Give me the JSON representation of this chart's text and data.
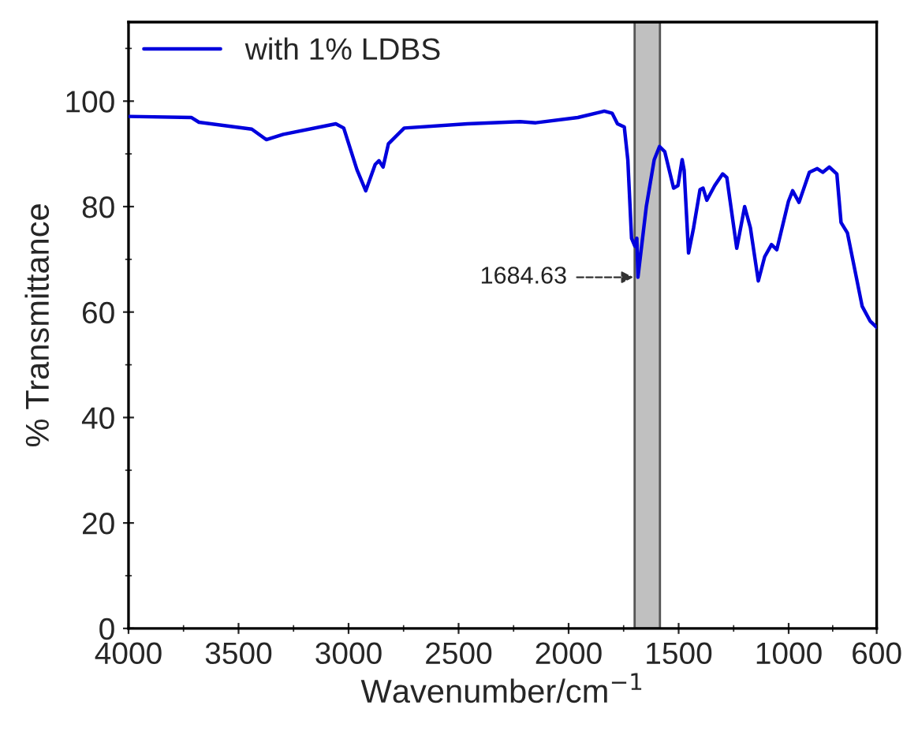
{
  "chart_data": {
    "type": "line",
    "xlabel": "Wavenumber/cm$^{−1}$",
    "ylabel": "% Transmittance",
    "xlim": [
      4000,
      600
    ],
    "ylim": [
      0,
      115
    ],
    "xticks": [
      4000,
      3500,
      3000,
      2500,
      2000,
      1500,
      1000,
      600
    ],
    "yticks": [
      0,
      20,
      40,
      60,
      80,
      100
    ],
    "grid": false,
    "legend": "top left",
    "marker": "none",
    "line_style": "solid",
    "bands": [
      {
        "axis": "x",
        "from": 1700,
        "to": 1585,
        "color": "#c0c0c0"
      }
    ],
    "annotations": [
      {
        "text": "1684.63",
        "x": 1685,
        "y": 66.6
      }
    ],
    "series": [
      {
        "name": "with 1% LDBS",
        "color": "#0000dd",
        "x": [
          4000,
          3715,
          3680,
          3440,
          3374,
          3297,
          3058,
          3022,
          2962,
          2922,
          2879,
          2862,
          2843,
          2819,
          2747,
          2460,
          2221,
          2149,
          1958,
          1838,
          1802,
          1778,
          1747,
          1731,
          1714,
          1699,
          1690,
          1685,
          1647,
          1611,
          1587,
          1563,
          1523,
          1503,
          1484,
          1475,
          1455,
          1432,
          1403,
          1389,
          1372,
          1336,
          1300,
          1281,
          1236,
          1200,
          1174,
          1138,
          1109,
          1078,
          1054,
          1001,
          982,
          953,
          906,
          870,
          845,
          815,
          781,
          762,
          733,
          666,
          630,
          600
        ],
        "values": [
          97.1,
          96.9,
          96.0,
          94.7,
          92.7,
          93.7,
          95.7,
          94.9,
          87.0,
          83.0,
          88.0,
          88.7,
          87.5,
          91.9,
          94.9,
          95.7,
          96.1,
          95.9,
          96.9,
          98.1,
          97.7,
          95.7,
          95.1,
          88.9,
          74.0,
          72.5,
          74.0,
          66.6,
          80.0,
          88.9,
          91.4,
          90.4,
          83.5,
          84.0,
          88.9,
          86.9,
          71.2,
          76.0,
          83.2,
          83.5,
          81.2,
          84.0,
          86.2,
          85.5,
          72.1,
          80.0,
          76.0,
          65.9,
          70.5,
          72.8,
          71.8,
          81.0,
          83.0,
          80.8,
          86.5,
          87.2,
          86.5,
          87.5,
          86.2,
          77.0,
          75.0,
          61.1,
          58.3,
          57.1
        ]
      }
    ]
  }
}
